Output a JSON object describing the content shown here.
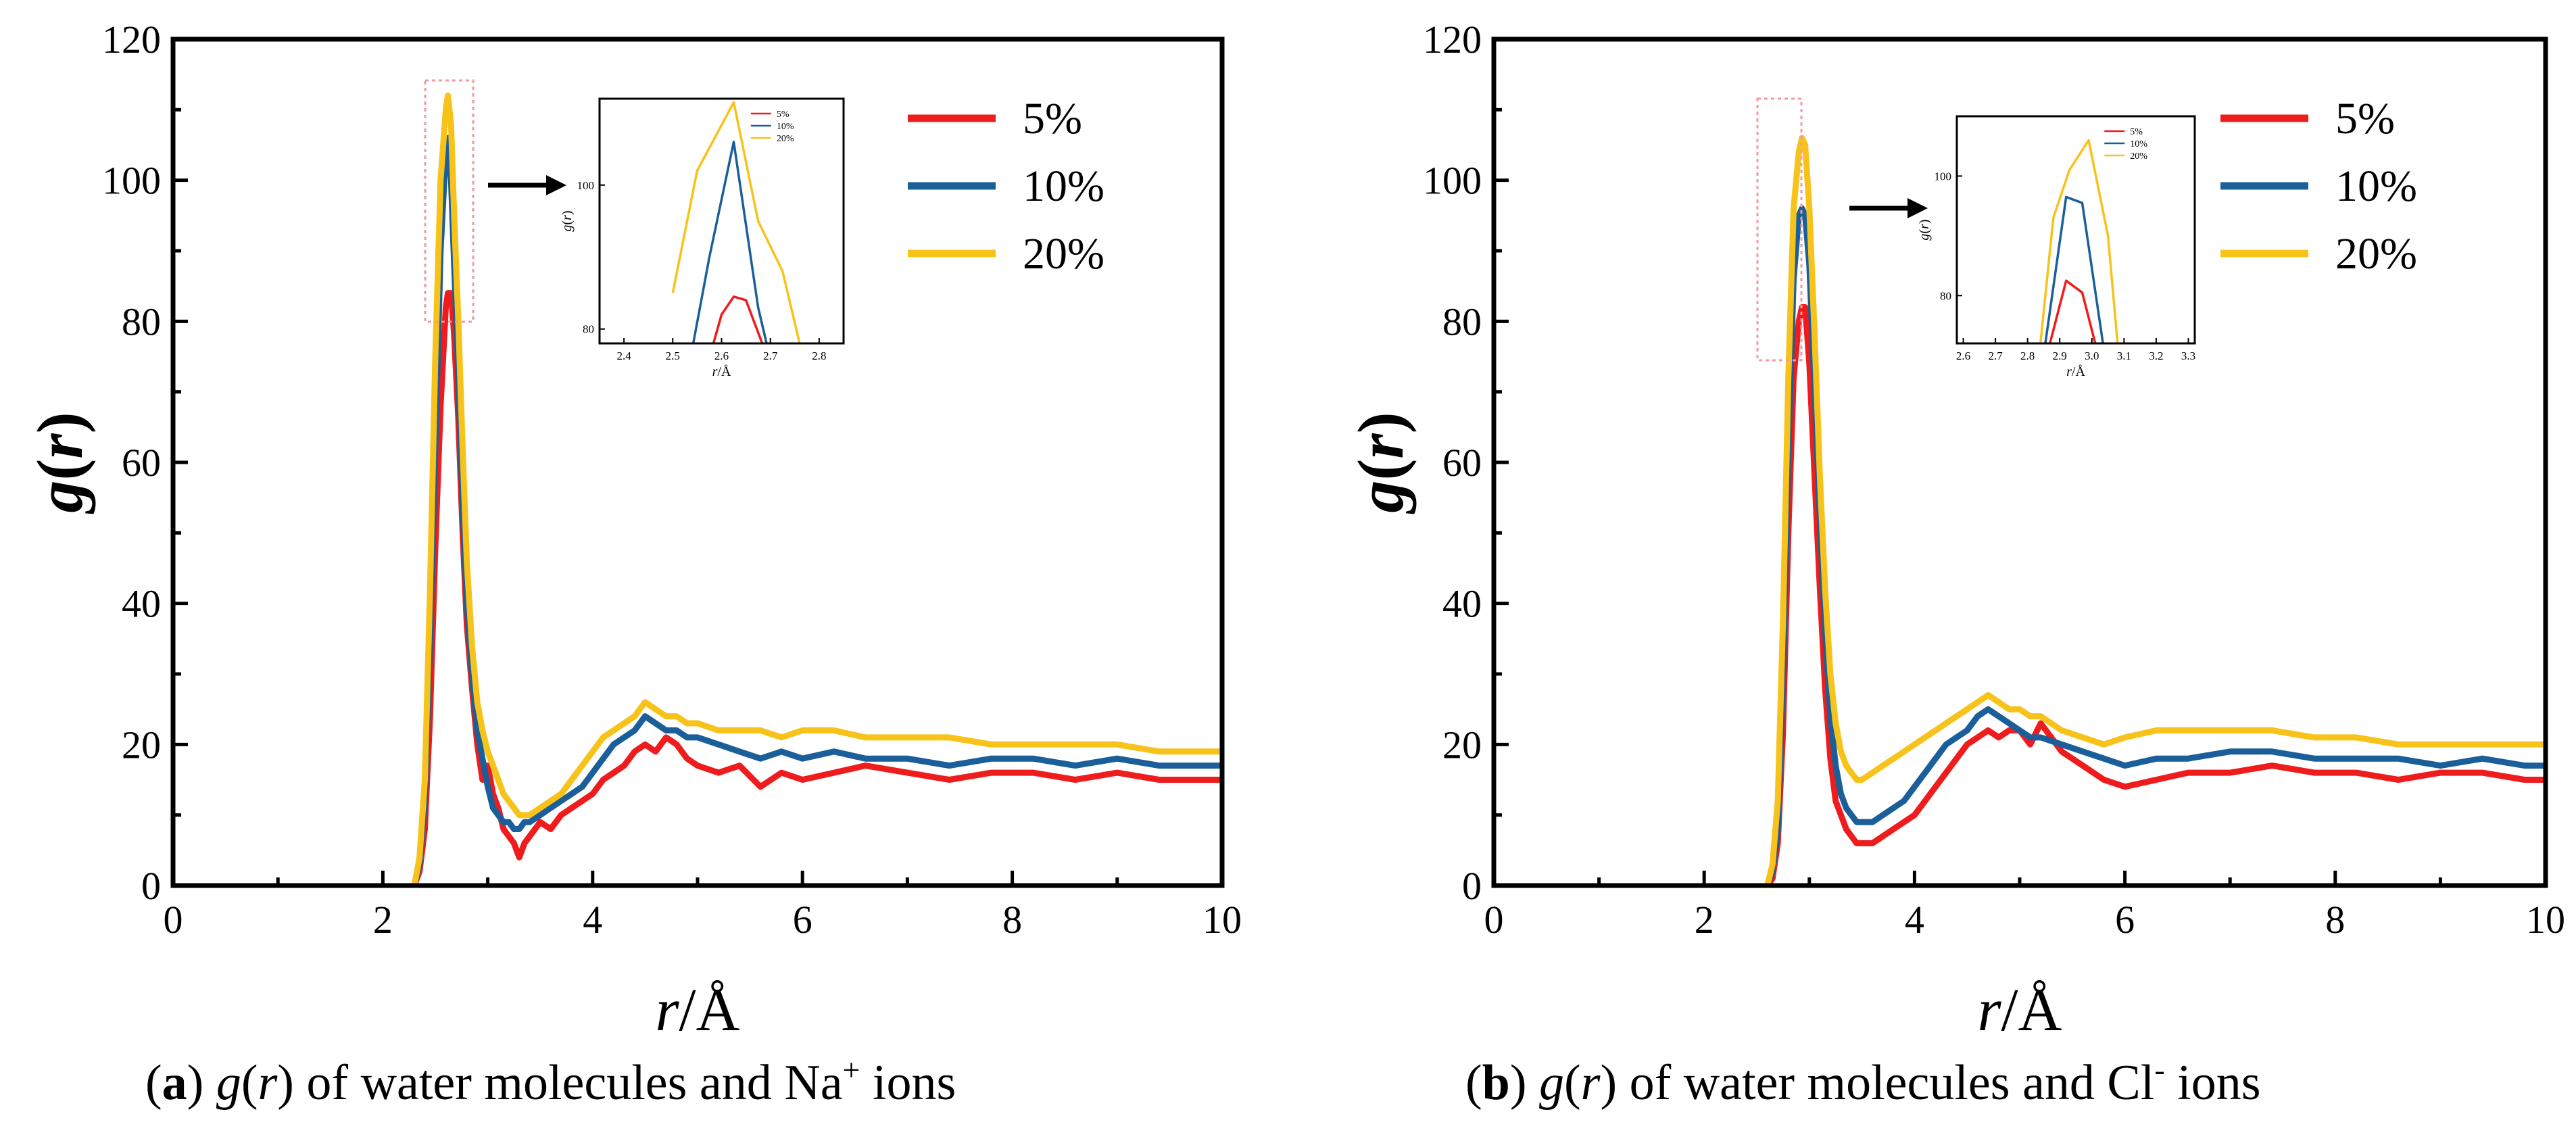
{
  "colors": {
    "s5": "#ee1c1c",
    "s10": "#1a5f99",
    "s20": "#f7c31b"
  },
  "chart_data": [
    {
      "id": "a",
      "type": "line",
      "caption": {
        "letter": "a",
        "italic": "g",
        "rest": "(r) of water molecules and Na",
        "sup": "+",
        "tail": " ions"
      },
      "xlabel": "r/Å",
      "ylabel": "g(r)",
      "xlim": [
        0,
        10
      ],
      "ylim": [
        0,
        120
      ],
      "xticks": [
        0,
        2,
        4,
        6,
        8,
        10
      ],
      "yticks": [
        0,
        20,
        40,
        60,
        80,
        100,
        120
      ],
      "legend": [
        "5%",
        "10%",
        "20%"
      ],
      "series": [
        {
          "name": "5%",
          "color_key": "s5",
          "x": [
            2.3,
            2.35,
            2.4,
            2.45,
            2.5,
            2.55,
            2.6,
            2.62,
            2.65,
            2.68,
            2.72,
            2.76,
            2.8,
            2.85,
            2.9,
            2.95,
            3.0,
            3.05,
            3.1,
            3.15,
            3.2,
            3.25,
            3.3,
            3.35,
            3.4,
            3.5,
            3.6,
            3.7,
            3.8,
            3.9,
            4.0,
            4.1,
            4.2,
            4.3,
            4.4,
            4.5,
            4.6,
            4.7,
            4.8,
            4.9,
            5.0,
            5.2,
            5.4,
            5.6,
            5.8,
            6.0,
            6.3,
            6.6,
            7.0,
            7.4,
            7.8,
            8.2,
            8.6,
            9.0,
            9.4,
            9.8,
            10.0
          ],
          "y": [
            0,
            2,
            8,
            24,
            48,
            68,
            82,
            84,
            84,
            78,
            66,
            50,
            37,
            28,
            20,
            15,
            17,
            13,
            11,
            8,
            7,
            6,
            4,
            6,
            7,
            9,
            8,
            10,
            11,
            12,
            13,
            15,
            16,
            17,
            19,
            20,
            19,
            21,
            20,
            18,
            17,
            16,
            17,
            14,
            16,
            15,
            16,
            17,
            16,
            15,
            16,
            16,
            15,
            16,
            15,
            15,
            15
          ]
        },
        {
          "name": "10%",
          "color_key": "s10",
          "x": [
            2.3,
            2.35,
            2.4,
            2.45,
            2.5,
            2.55,
            2.6,
            2.62,
            2.65,
            2.68,
            2.72,
            2.76,
            2.8,
            2.85,
            2.9,
            2.95,
            3.0,
            3.05,
            3.1,
            3.15,
            3.2,
            3.25,
            3.3,
            3.35,
            3.4,
            3.5,
            3.6,
            3.7,
            3.8,
            3.9,
            4.0,
            4.1,
            4.2,
            4.3,
            4.4,
            4.5,
            4.6,
            4.7,
            4.8,
            4.9,
            5.0,
            5.2,
            5.4,
            5.6,
            5.8,
            6.0,
            6.3,
            6.6,
            7.0,
            7.4,
            7.8,
            8.2,
            8.6,
            9.0,
            9.4,
            9.8,
            10.0
          ],
          "y": [
            0,
            3,
            12,
            35,
            62,
            90,
            104,
            106,
            100,
            88,
            72,
            54,
            40,
            30,
            22,
            18,
            14,
            11,
            10,
            9,
            9,
            8,
            8,
            9,
            9,
            10,
            11,
            12,
            13,
            14,
            16,
            18,
            20,
            21,
            22,
            24,
            23,
            22,
            22,
            21,
            21,
            20,
            19,
            18,
            19,
            18,
            19,
            18,
            18,
            17,
            18,
            18,
            17,
            18,
            17,
            17,
            17
          ]
        },
        {
          "name": "20%",
          "color_key": "s20",
          "x": [
            2.3,
            2.35,
            2.4,
            2.45,
            2.5,
            2.55,
            2.6,
            2.62,
            2.65,
            2.68,
            2.72,
            2.76,
            2.8,
            2.85,
            2.9,
            2.95,
            3.0,
            3.05,
            3.1,
            3.15,
            3.2,
            3.25,
            3.3,
            3.35,
            3.4,
            3.5,
            3.6,
            3.7,
            3.8,
            3.9,
            4.0,
            4.1,
            4.2,
            4.3,
            4.4,
            4.5,
            4.6,
            4.7,
            4.8,
            4.9,
            5.0,
            5.2,
            5.4,
            5.6,
            5.8,
            6.0,
            6.3,
            6.6,
            7.0,
            7.4,
            7.8,
            8.2,
            8.6,
            9.0,
            9.4,
            9.8,
            10.0
          ],
          "y": [
            0,
            4,
            15,
            42,
            75,
            100,
            110,
            112,
            108,
            95,
            80,
            62,
            46,
            34,
            26,
            22,
            19,
            17,
            15,
            13,
            12,
            11,
            10,
            10,
            10,
            11,
            12,
            13,
            15,
            17,
            19,
            21,
            22,
            23,
            24,
            26,
            25,
            24,
            24,
            23,
            23,
            22,
            22,
            22,
            21,
            22,
            22,
            21,
            21,
            21,
            20,
            20,
            20,
            20,
            19,
            19,
            19
          ]
        }
      ],
      "inset": {
        "xlabel": "r/Å",
        "ylabel": "g(r)",
        "xlim": [
          2.35,
          2.85
        ],
        "ylim": [
          78,
          112
        ],
        "xticks": [
          2.4,
          2.5,
          2.6,
          2.7,
          2.8
        ],
        "yticks": [
          80,
          100
        ],
        "legend": [
          "5%",
          "10%",
          "20%"
        ],
        "series": [
          {
            "name": "5%",
            "color_key": "s5",
            "x": [
              2.55,
              2.6,
              2.625,
              2.65,
              2.7
            ],
            "y": [
              70,
              82,
              84.5,
              84,
              75
            ]
          },
          {
            "name": "10%",
            "color_key": "s10",
            "x": [
              2.52,
              2.575,
              2.625,
              2.675,
              2.72
            ],
            "y": [
              70,
              90,
              106,
              83,
              70
            ]
          },
          {
            "name": "20%",
            "color_key": "s20",
            "x": [
              2.5,
              2.55,
              2.625,
              2.675,
              2.725,
              2.76
            ],
            "y": [
              85,
              102,
              111.5,
              95,
              88,
              78
            ]
          }
        ]
      }
    },
    {
      "id": "b",
      "type": "line",
      "caption": {
        "letter": "b",
        "italic": "g",
        "rest": "(r) of water molecules and Cl",
        "sup": "-",
        "tail": " ions"
      },
      "xlabel": "r/Å",
      "ylabel": "g(r)",
      "xlim": [
        0,
        10
      ],
      "ylim": [
        0,
        120
      ],
      "xticks": [
        0,
        2,
        4,
        6,
        8,
        10
      ],
      "yticks": [
        0,
        20,
        40,
        60,
        80,
        100,
        120
      ],
      "legend": [
        "5%",
        "10%",
        "20%"
      ],
      "series": [
        {
          "name": "5%",
          "color_key": "s5",
          "x": [
            2.6,
            2.65,
            2.7,
            2.75,
            2.8,
            2.85,
            2.9,
            2.93,
            2.96,
            3.0,
            3.05,
            3.1,
            3.15,
            3.2,
            3.25,
            3.3,
            3.35,
            3.4,
            3.45,
            3.5,
            3.6,
            3.7,
            3.8,
            3.9,
            4.0,
            4.1,
            4.2,
            4.3,
            4.4,
            4.5,
            4.6,
            4.7,
            4.8,
            4.9,
            5.0,
            5.1,
            5.2,
            5.4,
            5.6,
            5.8,
            6.0,
            6.3,
            6.6,
            7.0,
            7.4,
            7.8,
            8.2,
            8.6,
            9.0,
            9.4,
            9.8,
            10.0
          ],
          "y": [
            0,
            1,
            6,
            22,
            50,
            72,
            80,
            82,
            82,
            74,
            58,
            42,
            28,
            18,
            12,
            10,
            8,
            7,
            6,
            6,
            6,
            7,
            8,
            9,
            10,
            12,
            14,
            16,
            18,
            20,
            21,
            22,
            21,
            22,
            22,
            20,
            23,
            19,
            17,
            15,
            14,
            15,
            16,
            16,
            17,
            16,
            16,
            15,
            16,
            16,
            15,
            15
          ]
        },
        {
          "name": "10%",
          "color_key": "s10",
          "x": [
            2.6,
            2.65,
            2.7,
            2.75,
            2.8,
            2.85,
            2.9,
            2.93,
            2.96,
            3.0,
            3.05,
            3.1,
            3.15,
            3.2,
            3.25,
            3.3,
            3.35,
            3.4,
            3.45,
            3.5,
            3.6,
            3.7,
            3.8,
            3.9,
            4.0,
            4.1,
            4.2,
            4.3,
            4.4,
            4.5,
            4.6,
            4.7,
            4.8,
            4.9,
            5.0,
            5.1,
            5.2,
            5.4,
            5.6,
            5.8,
            6.0,
            6.3,
            6.6,
            7.0,
            7.4,
            7.8,
            8.2,
            8.6,
            9.0,
            9.4,
            9.8,
            10.0
          ],
          "y": [
            0,
            2,
            8,
            30,
            62,
            86,
            95,
            96,
            95,
            88,
            70,
            52,
            36,
            24,
            17,
            13,
            11,
            10,
            9,
            9,
            9,
            10,
            11,
            12,
            14,
            16,
            18,
            20,
            21,
            22,
            24,
            25,
            24,
            23,
            22,
            21,
            21,
            20,
            19,
            18,
            17,
            18,
            18,
            19,
            19,
            18,
            18,
            18,
            17,
            18,
            17,
            17
          ]
        },
        {
          "name": "20%",
          "color_key": "s20",
          "x": [
            2.6,
            2.65,
            2.7,
            2.75,
            2.8,
            2.85,
            2.9,
            2.93,
            2.96,
            3.0,
            3.05,
            3.1,
            3.15,
            3.2,
            3.25,
            3.3,
            3.35,
            3.4,
            3.45,
            3.5,
            3.6,
            3.7,
            3.8,
            3.9,
            4.0,
            4.1,
            4.2,
            4.3,
            4.4,
            4.5,
            4.6,
            4.7,
            4.8,
            4.9,
            5.0,
            5.1,
            5.2,
            5.4,
            5.6,
            5.8,
            6.0,
            6.3,
            6.6,
            7.0,
            7.4,
            7.8,
            8.2,
            8.6,
            9.0,
            9.4,
            9.8,
            10.0
          ],
          "y": [
            0,
            3,
            12,
            38,
            72,
            96,
            104,
            106,
            105,
            96,
            78,
            58,
            42,
            30,
            23,
            19,
            17,
            16,
            15,
            15,
            16,
            17,
            18,
            19,
            20,
            21,
            22,
            23,
            24,
            25,
            26,
            27,
            26,
            25,
            25,
            24,
            24,
            22,
            21,
            20,
            21,
            22,
            22,
            22,
            22,
            21,
            21,
            20,
            20,
            20,
            20,
            20
          ]
        }
      ],
      "inset": {
        "xlabel": "r/Å",
        "ylabel": "g(r)",
        "xlim": [
          2.58,
          3.32
        ],
        "ylim": [
          72,
          110
        ],
        "xticks": [
          2.6,
          2.7,
          2.8,
          2.9,
          3.0,
          3.1,
          3.2,
          3.3
        ],
        "yticks": [
          80,
          100
        ],
        "legend": [
          "5%",
          "10%",
          "20%"
        ],
        "series": [
          {
            "name": "5%",
            "color_key": "s5",
            "x": [
              2.86,
              2.92,
              2.97,
              3.02
            ],
            "y": [
              70,
              82.5,
              80.5,
              70
            ]
          },
          {
            "name": "10%",
            "color_key": "s10",
            "x": [
              2.85,
              2.92,
              2.97,
              3.04
            ],
            "y": [
              70,
              96.5,
              95.5,
              70
            ]
          },
          {
            "name": "20%",
            "color_key": "s20",
            "x": [
              2.84,
              2.88,
              2.93,
              2.99,
              3.05,
              3.08
            ],
            "y": [
              72,
              93,
              101,
              106,
              90,
              72
            ]
          }
        ]
      }
    }
  ]
}
